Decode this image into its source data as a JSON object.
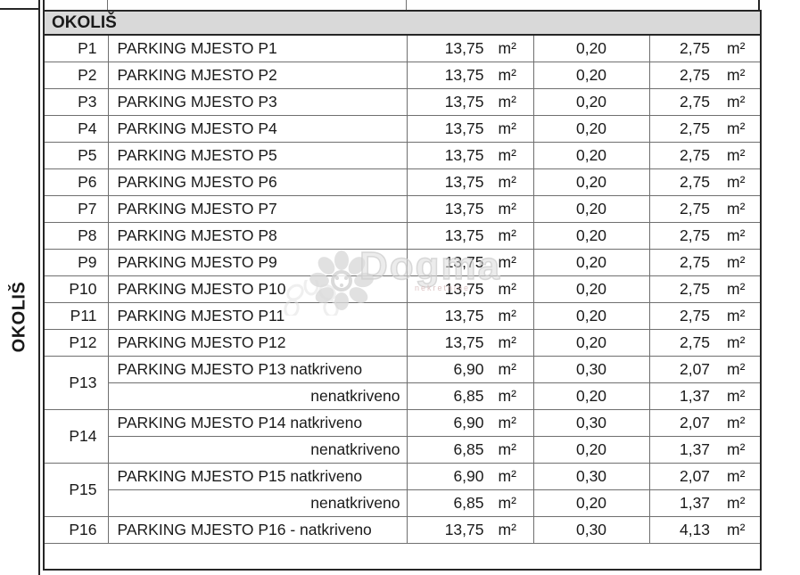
{
  "section": {
    "side_label": "OKOLIŠ",
    "header": "OKOLIŠ"
  },
  "colors": {
    "header_band": "#d9d9d9",
    "border_dark": "#262626",
    "border_gray": "#6f6f6f",
    "watermark_gray": "#dcdcdc",
    "watermark_pink": "#d6b9b9"
  },
  "watermark": {
    "brand": "Dogma",
    "sub": "nekretnine"
  },
  "table": {
    "header": "OKOLIŠ",
    "rows": [
      {
        "label": "P1",
        "desc": "PARKING MJESTO P1",
        "area": "13,75",
        "area_unit": "m²",
        "coef": "0,20",
        "result": "2,75",
        "result_unit": "m²"
      },
      {
        "label": "P2",
        "desc": "PARKING MJESTO P2",
        "area": "13,75",
        "area_unit": "m²",
        "coef": "0,20",
        "result": "2,75",
        "result_unit": "m²"
      },
      {
        "label": "P3",
        "desc": "PARKING MJESTO P3",
        "area": "13,75",
        "area_unit": "m²",
        "coef": "0,20",
        "result": "2,75",
        "result_unit": "m²"
      },
      {
        "label": "P4",
        "desc": "PARKING MJESTO P4",
        "area": "13,75",
        "area_unit": "m²",
        "coef": "0,20",
        "result": "2,75",
        "result_unit": "m²"
      },
      {
        "label": "P5",
        "desc": "PARKING MJESTO P5",
        "area": "13,75",
        "area_unit": "m²",
        "coef": "0,20",
        "result": "2,75",
        "result_unit": "m²"
      },
      {
        "label": "P6",
        "desc": "PARKING MJESTO P6",
        "area": "13,75",
        "area_unit": "m²",
        "coef": "0,20",
        "result": "2,75",
        "result_unit": "m²"
      },
      {
        "label": "P7",
        "desc": "PARKING MJESTO P7",
        "area": "13,75",
        "area_unit": "m²",
        "coef": "0,20",
        "result": "2,75",
        "result_unit": "m²"
      },
      {
        "label": "P8",
        "desc": "PARKING MJESTO P8",
        "area": "13,75",
        "area_unit": "m²",
        "coef": "0,20",
        "result": "2,75",
        "result_unit": "m²"
      },
      {
        "label": "P9",
        "desc": "PARKING MJESTO P9",
        "area": "13,75",
        "area_unit": "m²",
        "coef": "0,20",
        "result": "2,75",
        "result_unit": "m²"
      },
      {
        "label": "P10",
        "desc": "PARKING MJESTO P10",
        "area": "13,75",
        "area_unit": "m²",
        "coef": "0,20",
        "result": "2,75",
        "result_unit": "m²"
      },
      {
        "label": "P11",
        "desc": "PARKING MJESTO P11",
        "area": "13,75",
        "area_unit": "m²",
        "coef": "0,20",
        "result": "2,75",
        "result_unit": "m²"
      },
      {
        "label": "P12",
        "desc": "PARKING MJESTO P12",
        "area": "13,75",
        "area_unit": "m²",
        "coef": "0,20",
        "result": "2,75",
        "result_unit": "m²"
      },
      {
        "label": "P13",
        "rowspan": 2,
        "desc": "PARKING MJESTO P13 natkriveno",
        "area": "6,90",
        "area_unit": "m²",
        "coef": "0,30",
        "result": "2,07",
        "result_unit": "m²"
      },
      {
        "desc": "nenatkriveno",
        "desc_align": "right",
        "area": "6,85",
        "area_unit": "m²",
        "coef": "0,20",
        "result": "1,37",
        "result_unit": "m²"
      },
      {
        "label": "P14",
        "rowspan": 2,
        "desc": "PARKING MJESTO P14 natkriveno",
        "area": "6,90",
        "area_unit": "m²",
        "coef": "0,30",
        "result": "2,07",
        "result_unit": "m²"
      },
      {
        "desc": "nenatkriveno",
        "desc_align": "right",
        "area": "6,85",
        "area_unit": "m²",
        "coef": "0,20",
        "result": "1,37",
        "result_unit": "m²"
      },
      {
        "label": "P15",
        "rowspan": 2,
        "desc": "PARKING MJESTO P15 natkriveno",
        "area": "6,90",
        "area_unit": "m²",
        "coef": "0,30",
        "result": "2,07",
        "result_unit": "m²"
      },
      {
        "desc": "nenatkriveno",
        "desc_align": "right",
        "area": "6,85",
        "area_unit": "m²",
        "coef": "0,20",
        "result": "1,37",
        "result_unit": "m²"
      },
      {
        "label": "P16",
        "desc": "PARKING MJESTO P16 - natkriveno",
        "area": "13,75",
        "area_unit": "m²",
        "coef": "0,30",
        "result": "4,13",
        "result_unit": "m²"
      },
      {
        "empty": true
      }
    ]
  }
}
